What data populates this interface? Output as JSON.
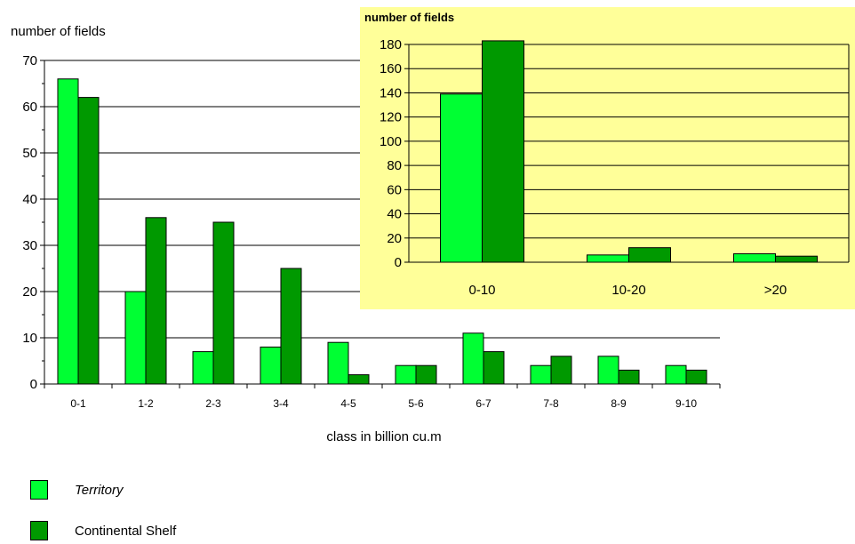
{
  "chart_data": [
    {
      "type": "bar",
      "title": "",
      "ylabel": "number of fields",
      "xlabel": "class in billion cu.m",
      "ylim": [
        0,
        70
      ],
      "yticks": [
        0,
        10,
        20,
        30,
        40,
        50,
        60,
        70
      ],
      "grid": true,
      "categories": [
        "0-1",
        "1-2",
        "2-3",
        "3-4",
        "4-5",
        "5-6",
        "6-7",
        "7-8",
        "8-9",
        "9-10"
      ],
      "series": [
        {
          "name": "Territory",
          "values": [
            66,
            20,
            7,
            8,
            9,
            4,
            11,
            4,
            6,
            4
          ]
        },
        {
          "name": "Continental Shelf",
          "values": [
            62,
            36,
            35,
            25,
            2,
            4,
            7,
            6,
            3,
            3
          ]
        }
      ]
    },
    {
      "type": "bar",
      "title": "number of fields",
      "ylabel": "",
      "xlabel": "",
      "ylim": [
        0,
        180
      ],
      "yticks": [
        0,
        20,
        40,
        60,
        80,
        100,
        120,
        140,
        160,
        180
      ],
      "grid": true,
      "categories": [
        "0-10",
        "10-20",
        ">20"
      ],
      "series": [
        {
          "name": "Territory",
          "values": [
            139,
            6,
            7
          ]
        },
        {
          "name": "Continental Shelf",
          "values": [
            183,
            12,
            5
          ]
        }
      ]
    }
  ],
  "legend": {
    "items": [
      {
        "label": "Territory",
        "color": "#00ff33",
        "italic": true
      },
      {
        "label": "Continental Shelf",
        "color": "#009900",
        "italic": false
      }
    ]
  },
  "colors": {
    "territory": "#00ff33",
    "continental_shelf": "#009900",
    "inset_background": "#ffff99"
  }
}
